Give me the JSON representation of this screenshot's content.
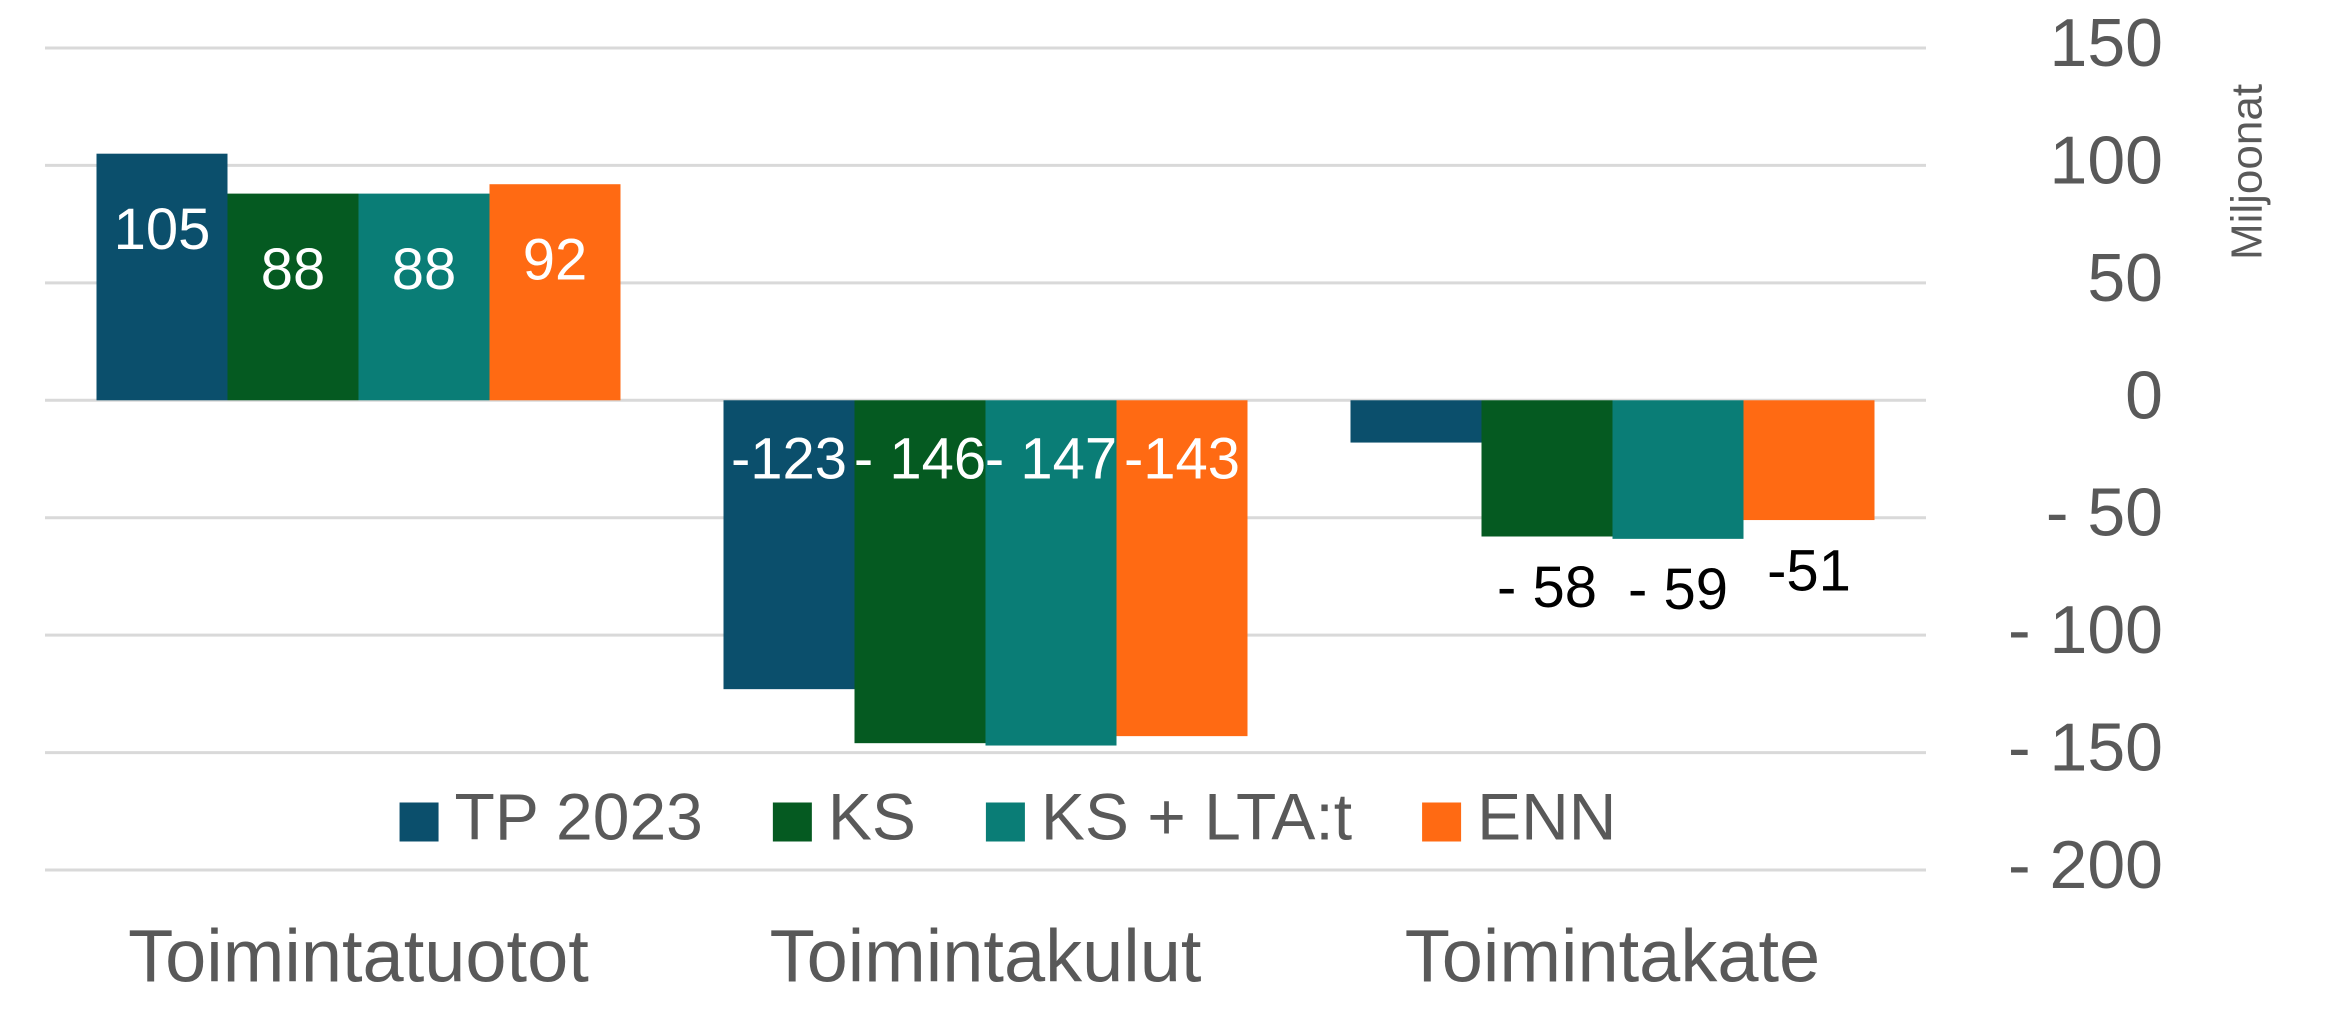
{
  "chart_data": {
    "type": "bar",
    "y_axis_label": "Miljoonat",
    "categories": [
      "Toimintatuotot",
      "Toimintakulut",
      "Toimintakate"
    ],
    "series": [
      {
        "name": "TP 2023",
        "color": "#0b4f6c",
        "values": [
          105,
          -123,
          -18
        ],
        "value_labels": [
          "105",
          "-123",
          null
        ]
      },
      {
        "name": "KS",
        "color": "#055a21",
        "values": [
          88,
          -146,
          -58
        ],
        "value_labels": [
          "88",
          "- 146",
          "- 58"
        ]
      },
      {
        "name": "KS + LTA:t",
        "color": "#0a7d76",
        "values": [
          88,
          -147,
          -59
        ],
        "value_labels": [
          "88",
          "- 147",
          "- 59"
        ]
      },
      {
        "name": "ENN",
        "color": "#ff6a13",
        "values": [
          92,
          -143,
          -51
        ],
        "value_labels": [
          "92",
          "-143",
          "-51"
        ]
      }
    ],
    "ylim": [
      -200,
      150
    ],
    "yticks": [
      {
        "value": -200,
        "label": "- 200"
      },
      {
        "value": -150,
        "label": "- 150"
      },
      {
        "value": -100,
        "label": "- 100"
      },
      {
        "value": -50,
        "label": "- 50"
      },
      0,
      50,
      100,
      150
    ],
    "grid": true,
    "legend": "bottom"
  }
}
